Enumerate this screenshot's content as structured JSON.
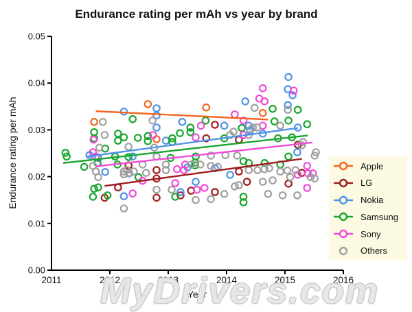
{
  "title": "Endurance rating per mAh vs year by brand",
  "watermark": "MyDrivers.com",
  "legend_bg": "#FCFAE3",
  "chart_data": {
    "type": "scatter",
    "title": "Endurance rating per mAh vs year by brand",
    "xlabel": "Year",
    "ylabel": "Endurance rating per mAh",
    "xlim": [
      2011,
      2016
    ],
    "ylim": [
      0,
      0.05
    ],
    "xticks": [
      2011,
      2012,
      2013,
      2014,
      2015,
      2016
    ],
    "yticks": [
      0.0,
      0.01,
      0.02,
      0.03,
      0.04,
      0.05
    ],
    "grid": false,
    "legend_position": "right",
    "marker": "open-circle",
    "series": [
      {
        "name": "Apple",
        "color": "#F4651C",
        "trend": {
          "x": [
            2011.76,
            2014.71
          ],
          "y": [
            0.034,
            0.0322
          ]
        },
        "points": [
          [
            2011.73,
            0.0317
          ],
          [
            2012.65,
            0.0355
          ],
          [
            2012.8,
            0.028
          ],
          [
            2013.65,
            0.0348
          ],
          [
            2014.62,
            0.0336
          ]
        ]
      },
      {
        "name": "LG",
        "color": "#A01D1F",
        "trend": {
          "x": [
            2011.91,
            2015.29
          ],
          "y": [
            0.018,
            0.0238
          ]
        },
        "points": [
          [
            2011.91,
            0.0155
          ],
          [
            2012.14,
            0.0177
          ],
          [
            2012.32,
            0.0224
          ],
          [
            2012.8,
            0.0214
          ],
          [
            2012.8,
            0.0196
          ],
          [
            2012.8,
            0.0155
          ],
          [
            2013.21,
            0.016
          ],
          [
            2013.39,
            0.017
          ],
          [
            2013.65,
            0.0282
          ],
          [
            2013.8,
            0.0311
          ],
          [
            2013.8,
            0.0167
          ],
          [
            2014.21,
            0.0279
          ],
          [
            2014.21,
            0.0211
          ],
          [
            2014.35,
            0.0189
          ],
          [
            2015.06,
            0.0185
          ],
          [
            2015.22,
            0.0268
          ],
          [
            2015.29,
            0.0208
          ]
        ]
      },
      {
        "name": "Nokia",
        "color": "#4F92E8",
        "trend": {
          "x": [
            2011.61,
            2015.22
          ],
          "y": [
            0.0243,
            0.0304
          ]
        },
        "points": [
          [
            2011.65,
            0.0246
          ],
          [
            2011.8,
            0.024
          ],
          [
            2011.92,
            0.021
          ],
          [
            2012.24,
            0.0339
          ],
          [
            2012.24,
            0.0158
          ],
          [
            2012.33,
            0.0207
          ],
          [
            2012.39,
            0.0243
          ],
          [
            2012.8,
            0.0346
          ],
          [
            2012.8,
            0.0331
          ],
          [
            2012.8,
            0.0305
          ],
          [
            2012.96,
            0.0277
          ],
          [
            2013.21,
            0.0167
          ],
          [
            2013.24,
            0.0317
          ],
          [
            2013.33,
            0.022
          ],
          [
            2013.47,
            0.0189
          ],
          [
            2013.8,
            0.0218
          ],
          [
            2013.96,
            0.0309
          ],
          [
            2014.06,
            0.0204
          ],
          [
            2014.32,
            0.0361
          ],
          [
            2014.38,
            0.0309
          ],
          [
            2014.4,
            0.0299
          ],
          [
            2014.62,
            0.0292
          ],
          [
            2015.05,
            0.0387
          ],
          [
            2015.05,
            0.0353
          ],
          [
            2015.06,
            0.0413
          ],
          [
            2015.13,
            0.0374
          ],
          [
            2015.21,
            0.0252
          ],
          [
            2015.22,
            0.0305
          ]
        ]
      },
      {
        "name": "Samsung",
        "color": "#17A62D",
        "trend": {
          "x": [
            2011.2,
            2015.39
          ],
          "y": [
            0.0229,
            0.0288
          ]
        },
        "points": [
          [
            2011.24,
            0.0251
          ],
          [
            2011.26,
            0.0243
          ],
          [
            2011.56,
            0.0221
          ],
          [
            2011.71,
            0.0157
          ],
          [
            2011.73,
            0.0295
          ],
          [
            2011.73,
            0.0282
          ],
          [
            2011.73,
            0.0174
          ],
          [
            2011.79,
            0.0229
          ],
          [
            2011.8,
            0.0177
          ],
          [
            2011.92,
            0.026
          ],
          [
            2011.96,
            0.016
          ],
          [
            2012.09,
            0.0243
          ],
          [
            2012.13,
            0.0226
          ],
          [
            2012.14,
            0.0292
          ],
          [
            2012.14,
            0.0277
          ],
          [
            2012.24,
            0.0284
          ],
          [
            2012.32,
            0.0242
          ],
          [
            2012.39,
            0.0323
          ],
          [
            2012.48,
            0.0283
          ],
          [
            2012.49,
            0.0199
          ],
          [
            2012.65,
            0.0287
          ],
          [
            2012.65,
            0.0276
          ],
          [
            2013.04,
            0.024
          ],
          [
            2013.07,
            0.0282
          ],
          [
            2013.07,
            0.0274
          ],
          [
            2013.12,
            0.0157
          ],
          [
            2013.2,
            0.0293
          ],
          [
            2013.38,
            0.0305
          ],
          [
            2013.38,
            0.0295
          ],
          [
            2013.46,
            0.023
          ],
          [
            2013.46,
            0.0224
          ],
          [
            2013.47,
            0.0243
          ],
          [
            2013.64,
            0.032
          ],
          [
            2013.96,
            0.0282
          ],
          [
            2014.26,
            0.0304
          ],
          [
            2014.29,
            0.0233
          ],
          [
            2014.29,
            0.0157
          ],
          [
            2014.29,
            0.0145
          ],
          [
            2014.38,
            0.0229
          ],
          [
            2014.65,
            0.0229
          ],
          [
            2014.79,
            0.0345
          ],
          [
            2014.82,
            0.0318
          ],
          [
            2014.88,
            0.0282
          ],
          [
            2014.92,
            0.0226
          ],
          [
            2015.06,
            0.032
          ],
          [
            2015.06,
            0.0243
          ],
          [
            2015.12,
            0.0284
          ],
          [
            2015.22,
            0.0343
          ],
          [
            2015.38,
            0.0312
          ]
        ]
      },
      {
        "name": "Sony",
        "color": "#EF4BD9",
        "trend": {
          "x": [
            2011.76,
            2015.47
          ],
          "y": [
            0.0222,
            0.0273
          ]
        },
        "points": [
          [
            2011.71,
            0.0252
          ],
          [
            2011.72,
            0.0279
          ],
          [
            2011.76,
            0.0243
          ],
          [
            2012.39,
            0.0164
          ],
          [
            2012.56,
            0.0191
          ],
          [
            2012.74,
            0.0289
          ],
          [
            2013.12,
            0.0186
          ],
          [
            2013.15,
            0.0216
          ],
          [
            2013.27,
            0.0214
          ],
          [
            2013.29,
            0.0226
          ],
          [
            2013.47,
            0.0284
          ],
          [
            2013.49,
            0.0172
          ],
          [
            2013.56,
            0.0309
          ],
          [
            2013.62,
            0.0176
          ],
          [
            2014.14,
            0.0333
          ],
          [
            2014.29,
            0.032
          ],
          [
            2014.29,
            0.0289
          ],
          [
            2014.56,
            0.0367
          ],
          [
            2014.62,
            0.0389
          ],
          [
            2014.62,
            0.0309
          ],
          [
            2014.65,
            0.0361
          ],
          [
            2015.15,
            0.0384
          ],
          [
            2015.22,
            0.0204
          ],
          [
            2015.38,
            0.0223
          ],
          [
            2015.38,
            0.0176
          ],
          [
            2015.39,
            0.0207
          ],
          [
            2015.48,
            0.0207
          ]
        ]
      },
      {
        "name": "Others",
        "color": "#A0A0A0",
        "trend": null,
        "points": [
          [
            2011.71,
            0.0223
          ],
          [
            2011.76,
            0.0211
          ],
          [
            2011.8,
            0.0199
          ],
          [
            2011.82,
            0.0262
          ],
          [
            2011.88,
            0.0317
          ],
          [
            2011.91,
            0.0289
          ],
          [
            2012.24,
            0.0211
          ],
          [
            2012.24,
            0.0205
          ],
          [
            2012.24,
            0.0132
          ],
          [
            2012.29,
            0.0214
          ],
          [
            2012.32,
            0.0264
          ],
          [
            2012.33,
            0.0208
          ],
          [
            2012.41,
            0.0211
          ],
          [
            2012.56,
            0.0226
          ],
          [
            2012.62,
            0.0208
          ],
          [
            2012.73,
            0.032
          ],
          [
            2012.76,
            0.0262
          ],
          [
            2012.8,
            0.0243
          ],
          [
            2012.8,
            0.0172
          ],
          [
            2012.96,
            0.0226
          ],
          [
            2012.96,
            0.0214
          ],
          [
            2013.06,
            0.0172
          ],
          [
            2013.39,
            0.0226
          ],
          [
            2013.47,
            0.015
          ],
          [
            2013.55,
            0.0226
          ],
          [
            2013.73,
            0.0245
          ],
          [
            2013.73,
            0.0223
          ],
          [
            2013.73,
            0.0152
          ],
          [
            2013.85,
            0.0221
          ],
          [
            2013.96,
            0.0163
          ],
          [
            2013.98,
            0.0246
          ],
          [
            2014.06,
            0.0289
          ],
          [
            2014.12,
            0.0296
          ],
          [
            2014.14,
            0.0179
          ],
          [
            2014.18,
            0.0245
          ],
          [
            2014.21,
            0.0182
          ],
          [
            2014.38,
            0.0289
          ],
          [
            2014.38,
            0.0214
          ],
          [
            2014.45,
            0.0305
          ],
          [
            2014.48,
            0.0347
          ],
          [
            2014.52,
            0.0305
          ],
          [
            2014.53,
            0.0214
          ],
          [
            2014.62,
            0.0189
          ],
          [
            2014.65,
            0.0216
          ],
          [
            2014.71,
            0.0163
          ],
          [
            2014.73,
            0.0218
          ],
          [
            2014.79,
            0.0192
          ],
          [
            2014.92,
            0.0309
          ],
          [
            2014.92,
            0.0211
          ],
          [
            2014.96,
            0.016
          ],
          [
            2015.04,
            0.0213
          ],
          [
            2015.05,
            0.0343
          ],
          [
            2015.09,
            0.0199
          ],
          [
            2015.18,
            0.0214
          ],
          [
            2015.21,
            0.016
          ],
          [
            2015.29,
            0.0267
          ],
          [
            2015.31,
            0.0274
          ],
          [
            2015.44,
            0.0199
          ],
          [
            2015.51,
            0.0245
          ],
          [
            2015.51,
            0.0196
          ],
          [
            2015.53,
            0.0252
          ]
        ]
      }
    ]
  }
}
